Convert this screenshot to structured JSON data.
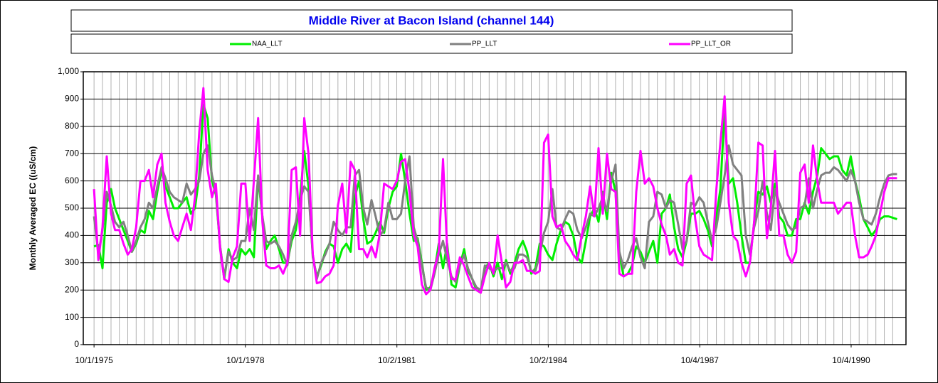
{
  "chart_data": {
    "type": "line",
    "title": "Middle River at Bacon Island (channel 144)",
    "y_label": "Monthly Averaged EC  ((uS/cm)",
    "grid": true,
    "x": [
      "1975-10-01",
      "1975-11-01",
      "1975-12-01",
      "1976-01-01",
      "1976-02-01",
      "1976-03-01",
      "1976-04-01",
      "1976-05-01",
      "1976-06-01",
      "1976-07-01",
      "1976-08-01",
      "1976-09-01",
      "1976-10-01",
      "1976-11-01",
      "1976-12-01",
      "1977-01-01",
      "1977-02-01",
      "1977-03-01",
      "1977-04-01",
      "1977-05-01",
      "1977-06-01",
      "1977-07-01",
      "1977-08-01",
      "1977-09-01",
      "1977-10-01",
      "1977-11-01",
      "1977-12-01",
      "1978-01-01",
      "1978-02-01",
      "1978-03-01",
      "1978-04-01",
      "1978-05-01",
      "1978-06-01",
      "1978-07-01",
      "1978-08-01",
      "1978-09-01",
      "1978-10-01",
      "1978-11-01",
      "1978-12-01",
      "1979-01-01",
      "1979-02-01",
      "1979-03-01",
      "1979-04-01",
      "1979-05-01",
      "1979-06-01",
      "1979-07-01",
      "1979-08-01",
      "1979-09-01",
      "1979-10-01",
      "1979-11-01",
      "1979-12-01",
      "1980-01-01",
      "1980-02-01",
      "1980-03-01",
      "1980-04-01",
      "1980-05-01",
      "1980-06-01",
      "1980-07-01",
      "1980-08-01",
      "1980-09-01",
      "1980-10-01",
      "1980-11-01",
      "1980-12-01",
      "1981-01-01",
      "1981-02-01",
      "1981-03-01",
      "1981-04-01",
      "1981-05-01",
      "1981-06-01",
      "1981-07-01",
      "1981-08-01",
      "1981-09-01",
      "1981-10-01",
      "1981-11-01",
      "1981-12-01",
      "1982-01-01",
      "1982-02-01",
      "1982-03-01",
      "1982-04-01",
      "1982-05-01",
      "1982-06-01",
      "1982-07-01",
      "1982-08-01",
      "1982-09-01",
      "1982-10-01",
      "1982-11-01",
      "1982-12-01",
      "1983-01-01",
      "1983-02-01",
      "1983-03-01",
      "1983-04-01",
      "1983-05-01",
      "1983-06-01",
      "1983-07-01",
      "1983-08-01",
      "1983-09-01",
      "1983-10-01",
      "1983-11-01",
      "1983-12-01",
      "1984-01-01",
      "1984-02-01",
      "1984-03-01",
      "1984-04-01",
      "1984-05-01",
      "1984-06-01",
      "1984-07-01",
      "1984-08-01",
      "1984-09-01",
      "1984-10-01",
      "1984-11-01",
      "1984-12-01",
      "1985-01-01",
      "1985-02-01",
      "1985-03-01",
      "1985-04-01",
      "1985-05-01",
      "1985-06-01",
      "1985-07-01",
      "1985-08-01",
      "1985-09-01",
      "1985-10-01",
      "1985-11-01",
      "1985-12-01",
      "1986-01-01",
      "1986-02-01",
      "1986-03-01",
      "1986-04-01",
      "1986-05-01",
      "1986-06-01",
      "1986-07-01",
      "1986-08-01",
      "1986-09-01",
      "1986-10-01",
      "1986-11-01",
      "1986-12-01",
      "1987-01-01",
      "1987-02-01",
      "1987-03-01",
      "1987-04-01",
      "1987-05-01",
      "1987-06-01",
      "1987-07-01",
      "1987-08-01",
      "1987-09-01",
      "1987-10-01",
      "1987-11-01",
      "1987-12-01",
      "1988-01-01",
      "1988-02-01",
      "1988-03-01",
      "1988-04-01",
      "1988-05-01",
      "1988-06-01",
      "1988-07-01",
      "1988-08-01",
      "1988-09-01",
      "1988-10-01",
      "1988-11-01",
      "1988-12-01",
      "1989-01-01",
      "1989-02-01",
      "1989-03-01",
      "1989-04-01",
      "1989-05-01",
      "1989-06-01",
      "1989-07-01",
      "1989-08-01",
      "1989-09-01",
      "1989-10-01",
      "1989-11-01",
      "1989-12-01",
      "1990-01-01",
      "1990-02-01",
      "1990-03-01",
      "1990-04-01",
      "1990-05-01",
      "1990-06-01",
      "1990-07-01",
      "1990-08-01",
      "1990-09-01",
      "1990-10-01",
      "1990-11-01",
      "1990-12-01",
      "1991-01-01",
      "1991-02-01",
      "1991-03-01",
      "1991-04-01",
      "1991-05-01",
      "1991-06-01",
      "1991-07-01",
      "1991-08-01",
      "1991-09-01"
    ],
    "xlim": [
      "1975-07-15",
      "1991-11-05"
    ],
    "xticks": [
      {
        "value": "1975-10-01",
        "label": "10/1/1975"
      },
      {
        "value": "1978-10-01",
        "label": "10/1/1978"
      },
      {
        "value": "1981-10-02",
        "label": "10/2/1981"
      },
      {
        "value": "1984-10-02",
        "label": "10/2/1984"
      },
      {
        "value": "1987-10-04",
        "label": "10/4/1987"
      },
      {
        "value": "1990-10-04",
        "label": "10/4/1990"
      }
    ],
    "ylim": [
      0,
      1000
    ],
    "yticks": [
      0,
      100,
      200,
      300,
      400,
      500,
      600,
      700,
      800,
      900,
      {
        "value": 1000,
        "label": "1,000"
      }
    ],
    "series": [
      {
        "name": "NAA_LLT",
        "color": "#00ee00",
        "values": [
          360,
          365,
          280,
          520,
          570,
          500,
          460,
          420,
          380,
          340,
          370,
          420,
          410,
          490,
          460,
          560,
          640,
          580,
          540,
          500,
          500,
          520,
          540,
          480,
          500,
          620,
          880,
          830,
          600,
          550,
          360,
          240,
          350,
          300,
          280,
          350,
          330,
          350,
          320,
          610,
          470,
          350,
          380,
          400,
          350,
          300,
          300,
          380,
          420,
          540,
          710,
          580,
          320,
          250,
          290,
          340,
          370,
          360,
          300,
          350,
          370,
          340,
          540,
          600,
          460,
          370,
          380,
          410,
          450,
          410,
          500,
          560,
          580,
          700,
          600,
          480,
          380,
          390,
          300,
          200,
          210,
          270,
          370,
          280,
          370,
          220,
          210,
          290,
          350,
          270,
          240,
          200,
          190,
          280,
          300,
          250,
          300,
          240,
          310,
          260,
          300,
          350,
          380,
          340,
          260,
          280,
          370,
          360,
          330,
          310,
          370,
          420,
          450,
          440,
          400,
          320,
          300,
          380,
          470,
          500,
          450,
          560,
          460,
          630,
          560,
          330,
          250,
          260,
          290,
          360,
          340,
          300,
          340,
          380,
          300,
          480,
          500,
          550,
          430,
          350,
          320,
          380,
          480,
          480,
          490,
          460,
          420,
          360,
          470,
          570,
          860,
          590,
          610,
          520,
          400,
          300,
          300,
          450,
          560,
          550,
          580,
          520,
          590,
          470,
          450,
          400,
          400,
          460,
          460,
          520,
          480,
          560,
          620,
          720,
          700,
          680,
          690,
          690,
          640,
          620,
          690,
          600,
          540,
          460,
          430,
          400,
          420,
          460,
          470,
          470,
          465,
          460
        ]
      },
      {
        "name": "PP_LLT",
        "color": "#808080",
        "values": [
          470,
          330,
          420,
          560,
          510,
          450,
          430,
          450,
          400,
          340,
          380,
          430,
          460,
          520,
          500,
          580,
          650,
          610,
          560,
          540,
          530,
          520,
          590,
          550,
          570,
          600,
          700,
          730,
          620,
          560,
          360,
          250,
          340,
          310,
          320,
          380,
          380,
          500,
          420,
          620,
          470,
          380,
          370,
          380,
          360,
          330,
          290,
          400,
          450,
          530,
          580,
          560,
          330,
          240,
          300,
          330,
          370,
          450,
          420,
          400,
          430,
          430,
          620,
          640,
          500,
          440,
          530,
          470,
          400,
          420,
          520,
          460,
          460,
          480,
          600,
          690,
          430,
          380,
          290,
          210,
          200,
          260,
          330,
          380,
          310,
          250,
          230,
          290,
          330,
          280,
          240,
          210,
          200,
          290,
          280,
          270,
          280,
          280,
          300,
          270,
          280,
          330,
          330,
          320,
          270,
          270,
          330,
          410,
          450,
          570,
          430,
          420,
          460,
          490,
          480,
          420,
          390,
          430,
          480,
          470,
          500,
          540,
          490,
          600,
          660,
          340,
          280,
          310,
          360,
          390,
          320,
          280,
          450,
          470,
          560,
          550,
          500,
          530,
          520,
          440,
          350,
          380,
          520,
          510,
          540,
          520,
          450,
          380,
          430,
          520,
          620,
          730,
          660,
          640,
          620,
          400,
          330,
          430,
          490,
          600,
          480,
          420,
          570,
          520,
          480,
          440,
          420,
          430,
          500,
          510,
          610,
          500,
          570,
          620,
          630,
          630,
          650,
          640,
          620,
          600,
          640,
          600,
          520,
          460,
          450,
          440,
          480,
          540,
          590,
          620,
          625,
          625
        ]
      },
      {
        "name": "PP_LLT_OR",
        "color": "#ff00ff",
        "values": [
          570,
          310,
          430,
          690,
          480,
          420,
          420,
          370,
          330,
          350,
          430,
          600,
          600,
          640,
          540,
          660,
          700,
          520,
          450,
          400,
          380,
          430,
          480,
          420,
          540,
          780,
          940,
          640,
          540,
          590,
          350,
          240,
          230,
          320,
          360,
          590,
          590,
          380,
          600,
          830,
          450,
          290,
          280,
          280,
          290,
          260,
          300,
          640,
          650,
          400,
          830,
          700,
          330,
          225,
          230,
          250,
          260,
          290,
          510,
          590,
          410,
          670,
          640,
          350,
          350,
          320,
          360,
          320,
          410,
          590,
          580,
          570,
          600,
          670,
          680,
          560,
          400,
          360,
          220,
          185,
          200,
          280,
          340,
          680,
          350,
          240,
          240,
          320,
          290,
          250,
          210,
          200,
          190,
          250,
          300,
          260,
          400,
          300,
          210,
          230,
          300,
          300,
          310,
          270,
          270,
          260,
          270,
          740,
          770,
          470,
          430,
          440,
          380,
          360,
          330,
          310,
          400,
          470,
          580,
          470,
          720,
          480,
          700,
          570,
          560,
          260,
          250,
          260,
          260,
          560,
          710,
          590,
          610,
          580,
          500,
          440,
          400,
          330,
          350,
          300,
          290,
          590,
          620,
          460,
          360,
          330,
          320,
          310,
          570,
          740,
          910,
          520,
          400,
          380,
          300,
          250,
          300,
          450,
          740,
          730,
          390,
          500,
          710,
          400,
          400,
          330,
          300,
          340,
          630,
          660,
          520,
          730,
          600,
          520,
          520,
          520,
          520,
          480,
          500,
          520,
          520,
          400,
          320,
          320,
          330,
          360,
          400,
          480,
          560,
          610,
          610,
          610
        ]
      }
    ]
  }
}
